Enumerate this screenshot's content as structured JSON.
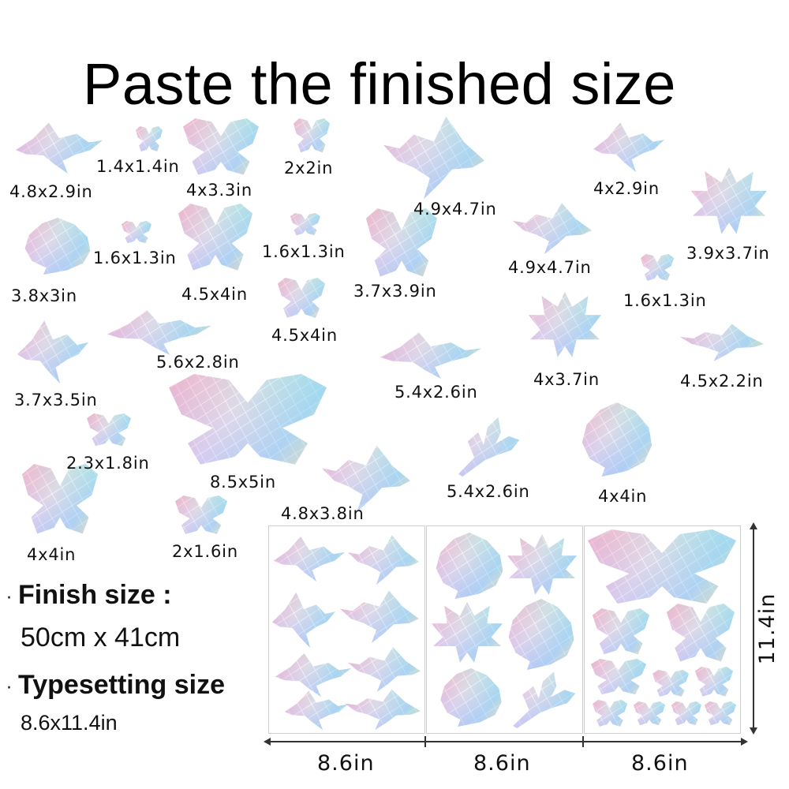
{
  "title": "Paste the finished size",
  "size_labels": [
    "4.8x2.9in",
    "1.4x1.4in",
    "4x3.3in",
    "2x2in",
    "4.9x4.7in",
    "4x2.9in",
    "3.9x3.7in",
    "3.8x3in",
    "1.6x1.3in",
    "4.5x4in",
    "1.6x1.3in",
    "3.7x3.9in",
    "4.9x4.7in",
    "1.6x1.3in",
    "4.5x4in",
    "5.6x2.8in",
    "3.7x3.5in",
    "5.4x2.6in",
    "4x3.7in",
    "4.5x2.2in",
    "2.3x1.8in",
    "8.5x5in",
    "5.4x2.6in",
    "4x4in",
    "4.8x3.8in",
    "4x4in",
    "2x1.6in"
  ],
  "specs": {
    "bullet": "·",
    "finish_title": "Finish size :",
    "finish_value": "50cm x 41cm",
    "typesetting_title": "Typesetting size",
    "typesetting_value": "8.6x11.4in"
  },
  "sheets": {
    "width_labels": [
      "8.6in",
      "8.6in",
      "8.6in"
    ],
    "height_label": "11.4in"
  },
  "colors": {
    "text": "#111111",
    "sticker_base": "#d9d3e4",
    "sheet_border": "#cfcfcf"
  }
}
